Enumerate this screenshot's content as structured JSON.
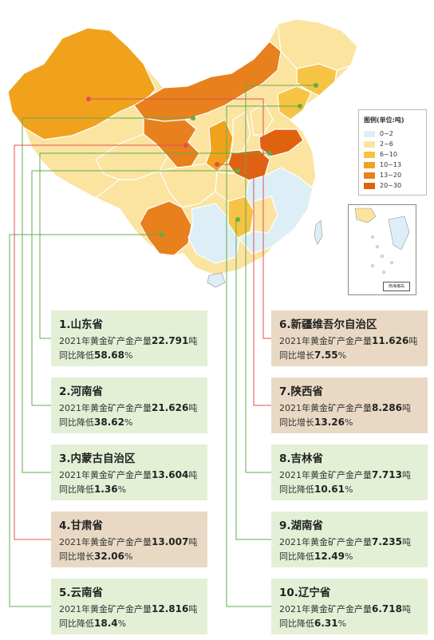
{
  "legend": {
    "title": "图例(单位:吨)",
    "items": [
      {
        "label": "0~2",
        "color": "#ddeef7"
      },
      {
        "label": "2~6",
        "color": "#fbe3a0"
      },
      {
        "label": "6~10",
        "color": "#f6c343"
      },
      {
        "label": "10~13",
        "color": "#f0a21c"
      },
      {
        "label": "13~20",
        "color": "#e8801e"
      },
      {
        "label": "20~30",
        "color": "#e0620f"
      }
    ]
  },
  "inset_label": "南海诸岛",
  "colors": {
    "decrease": "#5fae4a",
    "increase": "#e05050",
    "card_decrease": "#e3f0d6",
    "card_increase": "#e9d9c4"
  },
  "cards": [
    {
      "rank": "1.",
      "name": "山东省",
      "prefix": "2021年黄金矿产金产量",
      "value": "22.791",
      "unit": "吨",
      "change_prefix": "同比降低",
      "change": "58.68",
      "pct": "%",
      "trend": "decrease"
    },
    {
      "rank": "2.",
      "name": "河南省",
      "prefix": "2021年黄金矿产金产量",
      "value": "21.626",
      "unit": "吨",
      "change_prefix": "同比降低",
      "change": "38.62",
      "pct": "%",
      "trend": "decrease"
    },
    {
      "rank": "3.",
      "name": "内蒙古自治区",
      "prefix": "2021年黄金矿产金产量",
      "value": "13.604",
      "unit": "吨",
      "change_prefix": "同比降低",
      "change": "1.36",
      "pct": "%",
      "trend": "decrease"
    },
    {
      "rank": "4.",
      "name": "甘肃省",
      "prefix": "2021年黄金矿产金产量",
      "value": "13.007",
      "unit": "吨",
      "change_prefix": "同比增长",
      "change": "32.06",
      "pct": "%",
      "trend": "increase"
    },
    {
      "rank": "5.",
      "name": "云南省",
      "prefix": "2021年黄金矿产金产量",
      "value": "12.816",
      "unit": "吨",
      "change_prefix": "同比降低",
      "change": "18.4",
      "pct": "%",
      "trend": "decrease"
    },
    {
      "rank": "6.",
      "name": "新疆维吾尔自治区",
      "prefix": "2021年黄金矿产金产量",
      "value": "11.626",
      "unit": "吨",
      "change_prefix": "同比增长",
      "change": "7.55",
      "pct": "%",
      "trend": "increase"
    },
    {
      "rank": "7.",
      "name": "陕西省",
      "prefix": "2021年黄金矿产金产量",
      "value": "8.286",
      "unit": "吨",
      "change_prefix": "同比增长",
      "change": "13.26",
      "pct": "%",
      "trend": "increase"
    },
    {
      "rank": "8.",
      "name": "吉林省",
      "prefix": "2021年黄金矿产金产量",
      "value": "7.713",
      "unit": "吨",
      "change_prefix": "同比降低",
      "change": "10.61",
      "pct": "%",
      "trend": "decrease"
    },
    {
      "rank": "9.",
      "name": "湖南省",
      "prefix": "2021年黄金矿产金产量",
      "value": "7.235",
      "unit": "吨",
      "change_prefix": "同比降低",
      "change": "12.49",
      "pct": "%",
      "trend": "decrease"
    },
    {
      "rank": "10.",
      "name": "辽宁省",
      "prefix": "2021年黄金矿产金产量",
      "value": "6.718",
      "unit": "吨",
      "change_prefix": "同比降低",
      "change": "6.31",
      "pct": "%",
      "trend": "decrease"
    }
  ]
}
